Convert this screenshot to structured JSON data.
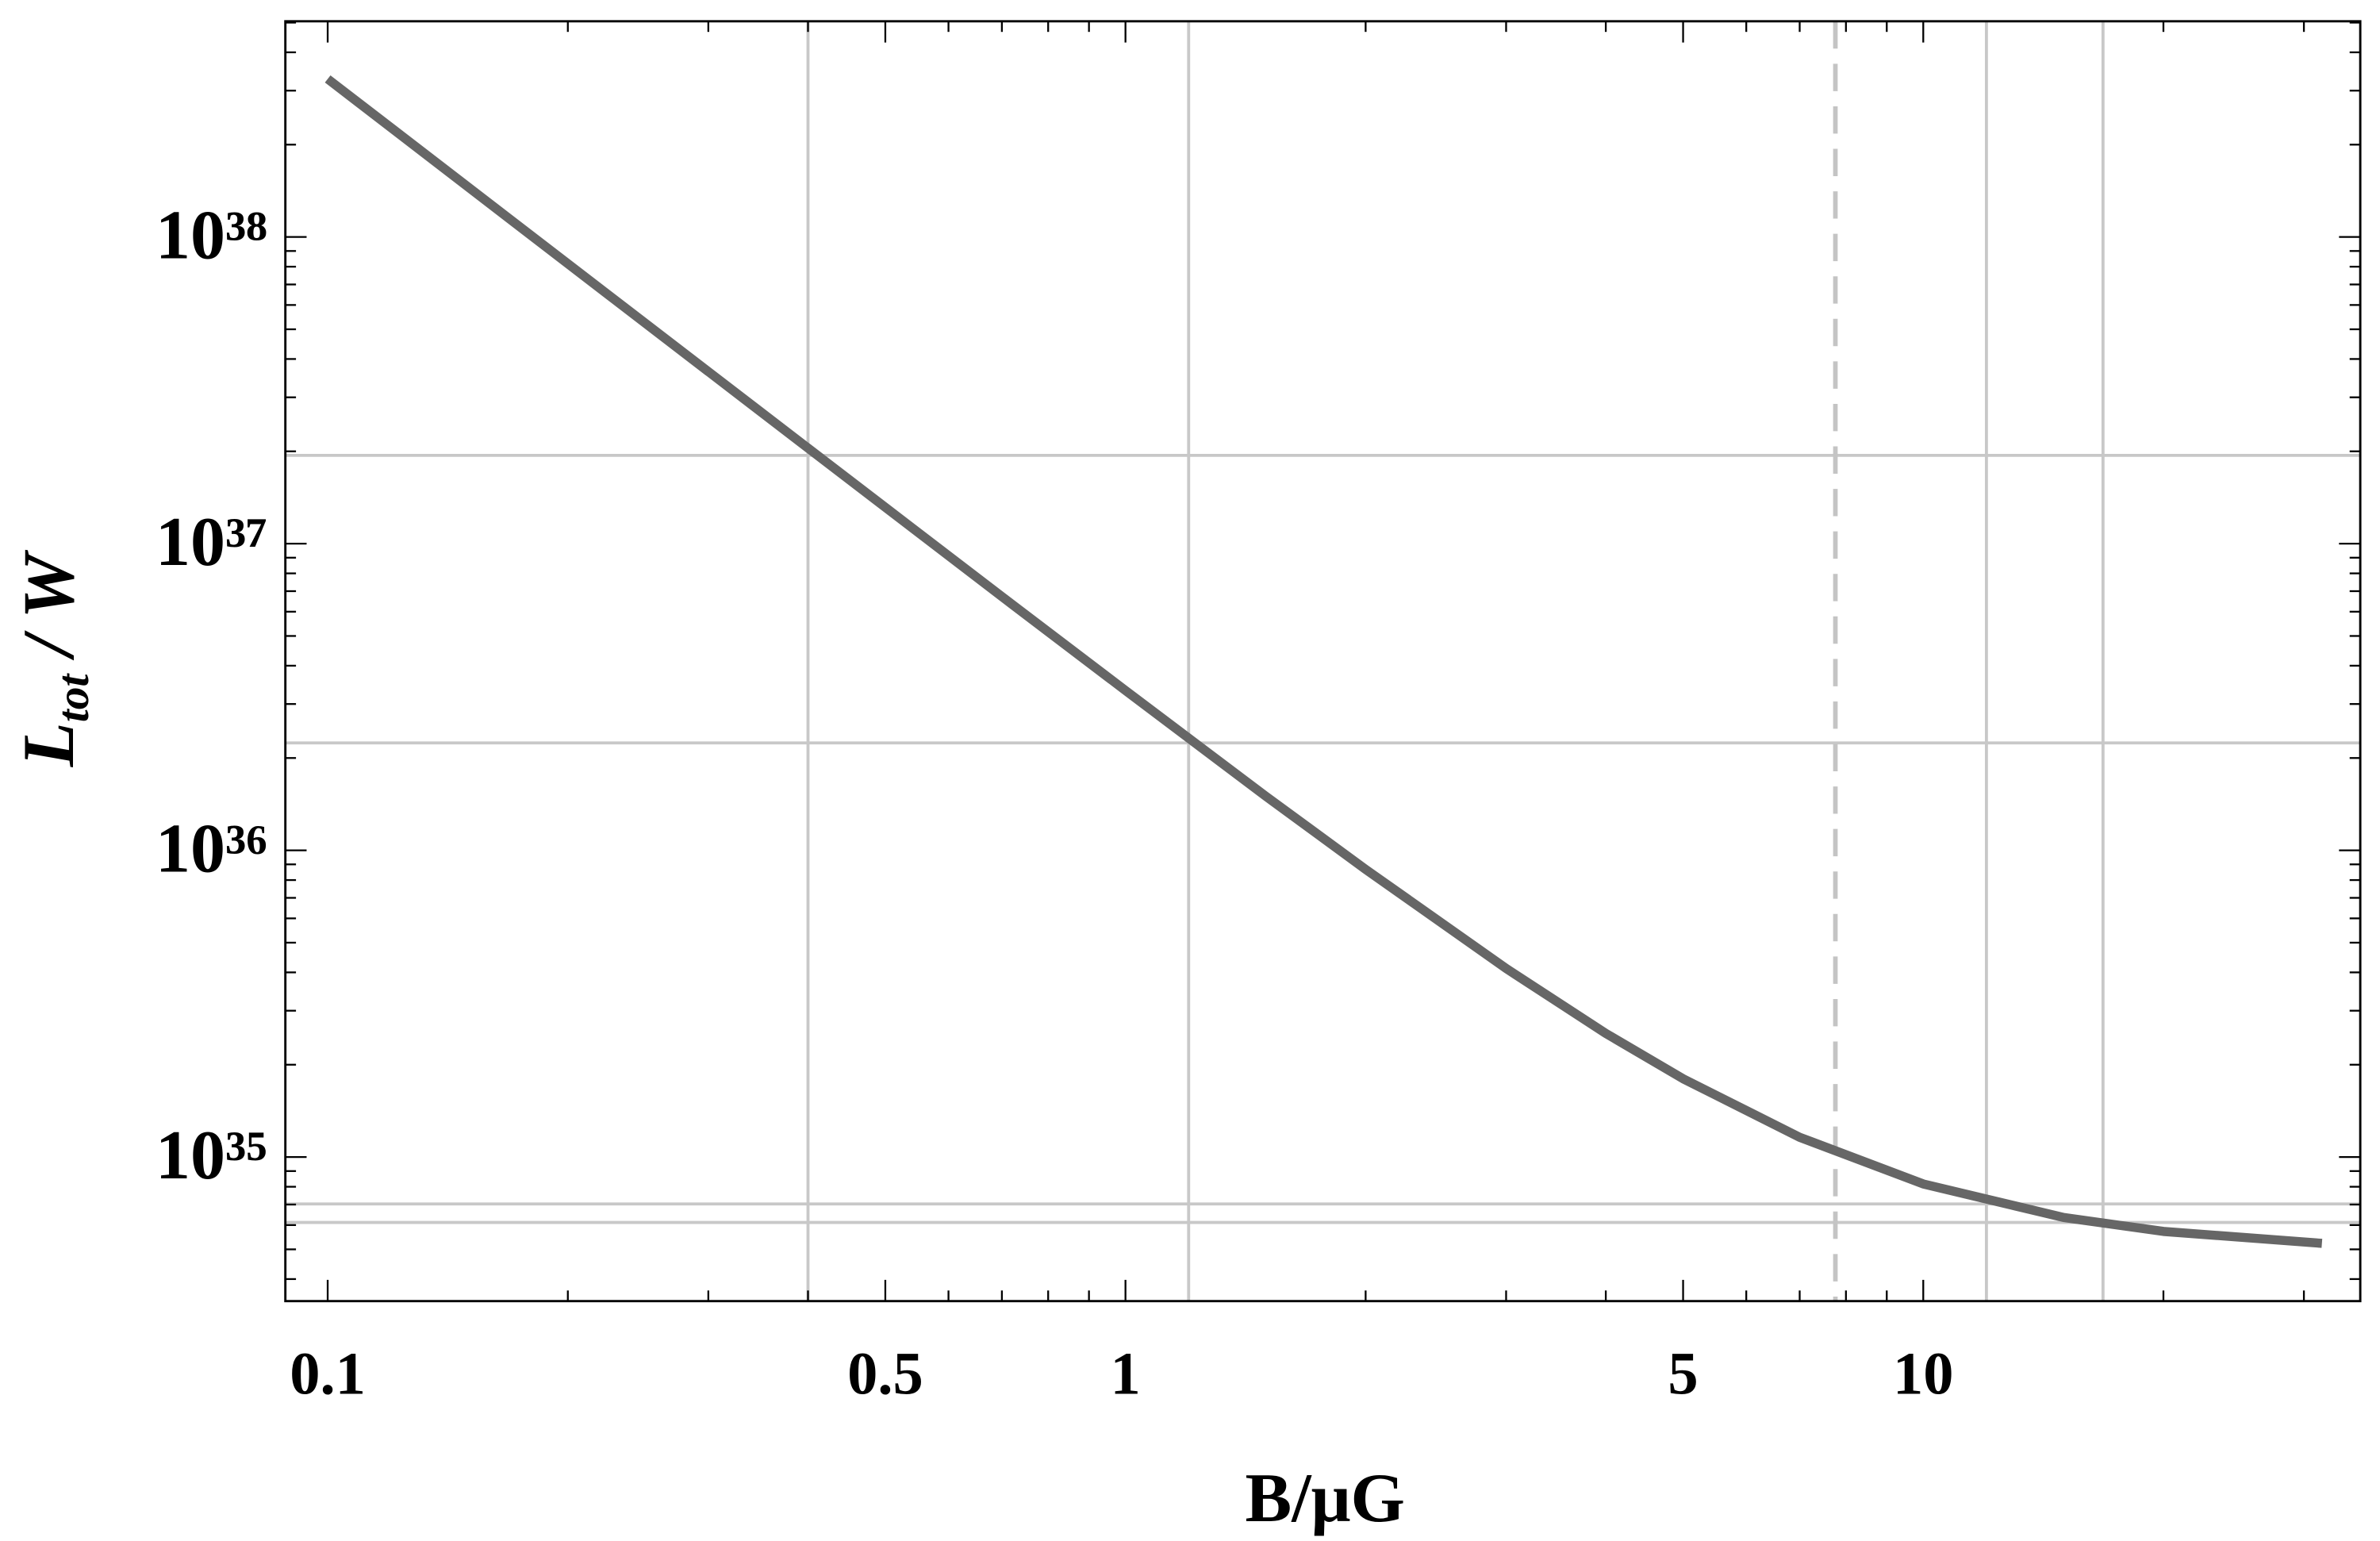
{
  "chart_data": {
    "type": "line",
    "log_x": true,
    "log_y": true,
    "xlabel": "B/μG",
    "ylabel": {
      "text": "L",
      "sub": "tot",
      "rest": " / W"
    },
    "x": [
      0.1,
      0.2,
      0.4,
      0.7,
      1,
      1.5,
      2,
      3,
      4,
      5,
      7,
      10,
      15,
      20,
      31.6
    ],
    "values": [
      3.275e+38,
      8.18e+37,
      2.049e+37,
      6.72e+36,
      3.32e+36,
      1.5e+36,
      8.67e+35,
      4.12e+35,
      2.53e+35,
      1.8e+35,
      1.16e+35,
      8.17e+34,
      6.35e+34,
      5.72e+34,
      5.23e+34
    ],
    "color": "#666666",
    "xlim": [
      0.0885,
      35.3
    ],
    "ylim": [
      3.39e+34,
      5.05e+38
    ],
    "xticks": [
      0.1,
      0.5,
      1,
      5,
      10
    ],
    "xminorticks": [
      0.2,
      0.3,
      0.4,
      0.6,
      0.7,
      0.8,
      0.9,
      2,
      3,
      4,
      6,
      7,
      8,
      9,
      20,
      30
    ],
    "yticks": [
      {
        "value": 1e+35,
        "label": "10³⁵"
      },
      {
        "value": 1e+36,
        "label": "10³⁶"
      },
      {
        "value": 1e+37,
        "label": "10³⁷"
      },
      {
        "value": 1e+38,
        "label": "10³⁸"
      }
    ],
    "yminorticks": [
      4e+34,
      5e+34,
      6e+34,
      7e+34,
      8e+34,
      9e+34,
      2e+35,
      3e+35,
      4e+35,
      5e+35,
      6e+35,
      7e+35,
      8e+35,
      9e+35,
      2e+36,
      3e+36,
      4e+36,
      5e+36,
      6e+36,
      7e+36,
      8e+36,
      9e+36,
      2e+37,
      3e+37,
      4e+37,
      5e+37,
      6e+37,
      7e+37,
      8e+37,
      9e+37,
      2e+38,
      3e+38,
      4e+38,
      5e+38
    ],
    "grid_x": [
      0.4,
      1.2,
      12,
      16.8
    ],
    "grid_y": [
      1.94e+37,
      2.24e+36,
      7.03e+34,
      6.12e+34
    ],
    "dashed_x": 7.76
  }
}
